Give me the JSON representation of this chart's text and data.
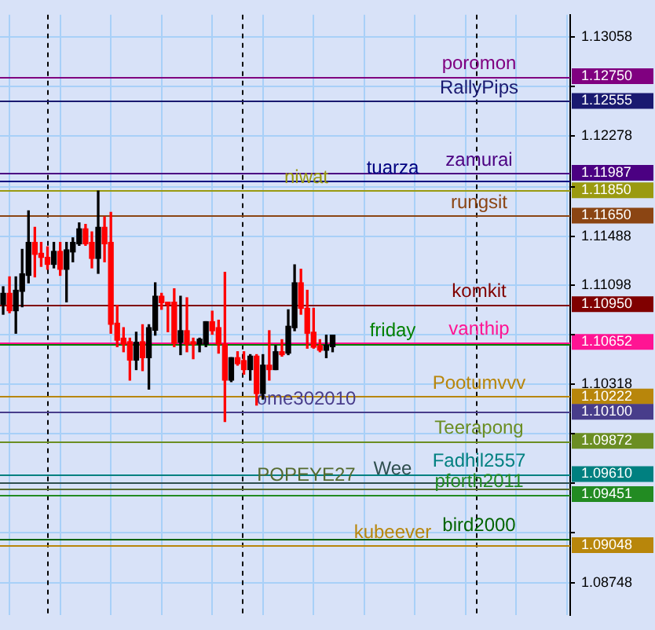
{
  "chart_data": {
    "type": "candlestick",
    "categories": [
      null,
      null,
      null,
      null,
      null,
      null,
      null,
      null,
      null,
      null,
      null,
      null,
      null,
      null,
      null,
      null,
      null,
      null,
      null,
      null,
      null,
      null,
      null,
      null,
      null,
      null,
      null,
      null,
      null,
      null,
      null,
      null,
      null,
      null,
      null,
      null,
      null,
      null,
      null,
      null,
      null,
      null,
      null,
      null,
      null,
      null,
      null,
      null,
      null,
      null,
      null,
      null,
      null,
      null,
      null,
      null,
      null,
      null,
      null,
      null,
      null,
      null,
      null,
      null,
      null,
      null,
      null,
      null,
      null,
      null,
      null,
      null,
      null,
      null,
      null,
      null,
      null,
      null,
      null,
      null,
      null,
      null,
      null,
      null,
      null,
      null,
      null,
      null,
      null,
      null
    ],
    "ohlc": [
      [
        1.1095,
        1.11088,
        1.10871,
        1.11036
      ],
      [
        1.11036,
        1.11166,
        1.10883,
        1.10899
      ],
      [
        1.10899,
        1.11166,
        1.10721,
        1.1106
      ],
      [
        1.11052,
        1.11383,
        1.1093,
        1.1119
      ],
      [
        1.11178,
        1.11687,
        1.11119,
        1.11438
      ],
      [
        1.11438,
        1.11557,
        1.11166,
        1.11344
      ],
      [
        1.11352,
        1.11438,
        1.11249,
        1.1132
      ],
      [
        1.1132,
        1.11403,
        1.11226,
        1.11265
      ],
      [
        1.11265,
        1.11438,
        1.11237,
        1.11367
      ],
      [
        1.11367,
        1.11438,
        1.11178,
        1.11226
      ],
      [
        1.11226,
        1.11438,
        1.10969,
        1.11379
      ],
      [
        1.11363,
        1.11474,
        1.11285,
        1.11438
      ],
      [
        1.11427,
        1.11592,
        1.11415,
        1.11545
      ],
      [
        1.11545,
        1.1158,
        1.11415,
        1.11427
      ],
      [
        1.11438,
        1.11521,
        1.11237,
        1.11312
      ],
      [
        1.11312,
        1.11844,
        1.11194,
        1.11557
      ],
      [
        1.11557,
        1.11639,
        1.11285,
        1.11427
      ],
      [
        1.11438,
        1.11675,
        1.10721,
        1.10792
      ],
      [
        1.108,
        1.10942,
        1.10615,
        1.10666
      ],
      [
        1.10682,
        1.10765,
        1.10575,
        1.10635
      ],
      [
        1.10654,
        1.10682,
        1.10351,
        1.10509
      ],
      [
        1.10509,
        1.10729,
        1.10434,
        1.1065
      ],
      [
        1.10654,
        1.10788,
        1.10426,
        1.10528
      ],
      [
        1.10528,
        1.10788,
        1.1028,
        1.10765
      ],
      [
        1.10745,
        1.11119,
        1.10706,
        1.11013
      ],
      [
        1.11013,
        1.11036,
        1.1091,
        1.10962
      ],
      [
        1.10966,
        1.10966,
        1.10733,
        1.1095
      ],
      [
        1.10966,
        1.11072,
        1.10615,
        1.10642
      ],
      [
        1.1065,
        1.11013,
        1.10552,
        1.10741
      ],
      [
        1.10741,
        1.11001,
        1.10575,
        1.10635
      ],
      [
        1.10654,
        1.10682,
        1.1052,
        1.10635
      ],
      [
        1.10635,
        1.10682,
        1.10575,
        1.10674
      ],
      [
        1.10635,
        1.10812,
        1.10615,
        1.10812
      ],
      [
        1.10812,
        1.10895,
        1.10713,
        1.10741
      ],
      [
        1.10765,
        1.10824,
        1.10564,
        1.10635
      ],
      [
        1.10635,
        1.11202,
        1.10024,
        1.10351
      ],
      [
        1.10351,
        1.10528,
        1.10339,
        1.10528
      ],
      [
        1.10528,
        1.10575,
        1.10469,
        1.10481
      ],
      [
        1.10505,
        1.10575,
        1.10398,
        1.10434
      ],
      [
        1.10434,
        1.10552,
        1.10351,
        1.1054
      ],
      [
        1.1054,
        1.10552,
        1.10154,
        1.10245
      ],
      [
        1.10245,
        1.10552,
        1.10201,
        1.10469
      ],
      [
        1.10469,
        1.10741,
        1.10351,
        1.10434
      ],
      [
        1.10434,
        1.10623,
        1.10434,
        1.10575
      ],
      [
        1.10575,
        1.1067,
        1.1054,
        1.10552
      ],
      [
        1.10564,
        1.10906,
        1.10552,
        1.10776
      ],
      [
        1.10765,
        1.11261,
        1.10741,
        1.11119
      ],
      [
        1.11119,
        1.11226,
        1.10871,
        1.10918
      ],
      [
        1.10918,
        1.1106,
        1.10603,
        1.10721
      ],
      [
        1.10729,
        1.10918,
        1.10603,
        1.10611
      ],
      [
        1.10623,
        1.1067,
        1.10575,
        1.10587
      ],
      [
        1.10587,
        1.10706,
        1.10528,
        1.10627
      ],
      [
        1.10615,
        1.10706,
        1.10575,
        1.10706
      ],
      null,
      null,
      null,
      null,
      null,
      null,
      null,
      null,
      null,
      null,
      null,
      null,
      null,
      null,
      null,
      null,
      null,
      null,
      null,
      null,
      null,
      null,
      null,
      null,
      null,
      null,
      null,
      null,
      null,
      null,
      null,
      null,
      null,
      null,
      null,
      null,
      null
    ],
    "colors": [
      "#000000",
      "#ff0000",
      "#000000",
      "#000000",
      "#000000",
      "#ff0000",
      "#ff0000",
      "#ff0000",
      "#000000",
      "#ff0000",
      "#000000",
      "#000000",
      "#000000",
      "#ff0000",
      "#ff0000",
      "#000000",
      "#ff0000",
      "#ff0000",
      "#ff0000",
      "#ff0000",
      "#ff0000",
      "#000000",
      "#ff0000",
      "#000000",
      "#000000",
      "#ff0000",
      "#ff0000",
      "#ff0000",
      "#000000",
      "#ff0000",
      "#ff0000",
      "#000000",
      "#000000",
      "#ff0000",
      "#ff0000",
      "#ff0000",
      "#000000",
      "#ff0000",
      "#ff0000",
      "#000000",
      "#ff0000",
      "#000000",
      "#ff0000",
      "#000000",
      "#ff0000",
      "#000000",
      "#000000",
      "#ff0000",
      "#ff0000",
      "#ff0000",
      "#ff0000",
      "#000000",
      "#000000",
      null,
      null,
      null,
      null,
      null,
      null,
      null,
      null,
      null,
      null,
      null,
      null,
      null,
      null,
      null,
      null,
      null,
      null,
      null,
      null,
      null,
      null,
      null,
      null,
      null,
      null,
      null,
      null,
      null,
      null,
      null,
      null,
      null,
      null,
      null,
      null,
      null
    ],
    "ylim": [
      1.08495,
      1.13235
    ],
    "yticks": [
      1.13058,
      {
        "value": 1.1275,
        "label": "1.12750"
      },
      {
        "value": 1.12668,
        "label": null
      },
      1.12555,
      1.12278,
      1.11987,
      {
        "value": 1.11878,
        "label": null
      },
      {
        "value": 1.1185,
        "label": "1.11850"
      },
      {
        "value": 1.1165,
        "label": "1.11650"
      },
      1.11488,
      1.11098,
      {
        "value": 1.1095,
        "label": "1.10950"
      },
      {
        "value": 1.10708,
        "label": null
      },
      1.10652,
      1.10318,
      1.10222,
      {
        "value": 1.101,
        "label": "1.10100"
      },
      {
        "value": 1.09928,
        "label": null
      },
      1.09872,
      {
        "value": 1.0961,
        "label": "1.09610"
      },
      {
        "value": 1.09538,
        "label": null
      },
      1.09451,
      {
        "value": 1.09148,
        "label": null
      },
      1.09048,
      1.08748
    ],
    "grid": true,
    "tick_labels": "y",
    "ref_lines": [
      {
        "axis": "y",
        "value": 1.1275,
        "label": "poromon",
        "color": "#800080"
      },
      {
        "axis": "y",
        "value": 1.12555,
        "label": "RallyPips",
        "color": "#191970"
      },
      {
        "axis": "y",
        "value": 1.11987,
        "label": "zamurai",
        "color": "#4b0082"
      },
      {
        "axis": "y",
        "value": 1.11925,
        "label": "tuarza",
        "color": "#000080"
      },
      {
        "axis": "y",
        "value": 1.1185,
        "label": "niwat",
        "color": "#9a9a10"
      },
      {
        "axis": "y",
        "value": 1.1165,
        "label": "rungsit",
        "color": "#8b4513"
      },
      {
        "axis": "y",
        "value": 1.1095,
        "label": "komkit",
        "color": "#800000"
      },
      {
        "axis": "y",
        "value": 1.10652,
        "label": "vanthip",
        "color": "#ff1493"
      },
      {
        "axis": "y",
        "value": 1.10637,
        "label": "friday",
        "color": "#008000"
      },
      {
        "axis": "y",
        "value": 1.10222,
        "label": "Pootumvvv",
        "color": "#b8860b"
      },
      {
        "axis": "y",
        "value": 1.101,
        "label": "ome302010",
        "color": "#483d8b"
      },
      {
        "axis": "y",
        "value": 1.09872,
        "label": "Teerapong",
        "color": "#6b8e23"
      },
      {
        "axis": "y",
        "value": 1.0961,
        "label": "Fadhil2557",
        "color": "#008080"
      },
      {
        "axis": "y",
        "value": 1.0955,
        "label": "Wee",
        "color": "#2f4f4f"
      },
      {
        "axis": "y",
        "value": 1.095,
        "label": "POPEYE27",
        "color": "#556b2f"
      },
      {
        "axis": "y",
        "value": 1.09451,
        "label": "pforth2011",
        "color": "#228b22"
      },
      {
        "axis": "y",
        "value": 1.091,
        "label": "bird2000",
        "color": "#006400"
      },
      {
        "axis": "y",
        "value": 1.09048,
        "label": "kubeever",
        "color": "#b8860b"
      }
    ]
  }
}
